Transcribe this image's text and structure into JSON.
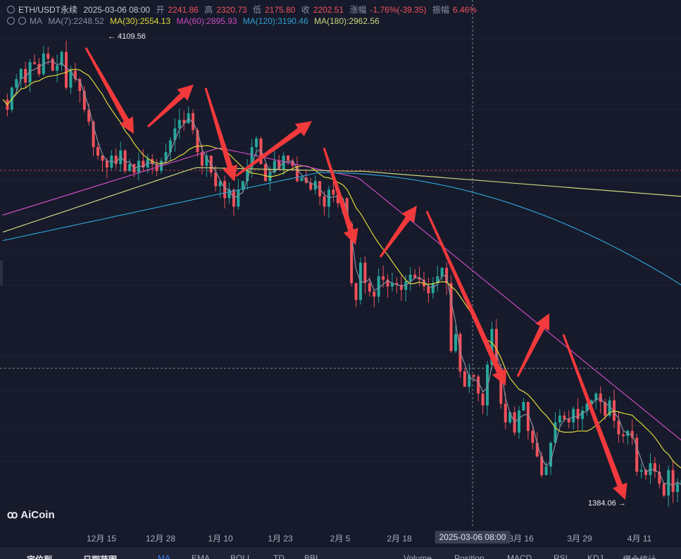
{
  "header": {
    "symbol": "ETH/USDT永续",
    "datetime": "2025-03-06 08:00",
    "open_label": "开",
    "open": "2241.86",
    "high_label": "高",
    "high": "2320.73",
    "low_label": "低",
    "low": "2175.80",
    "close_label": "收",
    "close": "2202.51",
    "change_label": "涨幅",
    "change": "-1.76%(-39.35)",
    "amp_label": "振幅",
    "amp": "6.46%"
  },
  "indicators": {
    "name": "MA",
    "ma7": "MA(7):2248.52",
    "ma30": "MA(30):2554.13",
    "ma60": "MA(60):2895.93",
    "ma120": "MA(120):3190.46",
    "ma180": "MA(180):2962.56"
  },
  "colors": {
    "up": "#f0515a",
    "down": "#26a69a",
    "ma7": "#8a8fa0",
    "ma30": "#e0d93a",
    "ma60": "#c94bbf",
    "ma120": "#2f9fd0",
    "ma180": "#c9d67a",
    "arrow": "#f2393c"
  },
  "annotations": {
    "high_label": "← 4109.56",
    "low_label": "1384.06 →"
  },
  "crosshair_label": "2025-03-06 08:00",
  "logo": {
    "text": "AiCoin",
    "icon": "aicoin-logo-icon"
  },
  "x_axis_labels": [
    "12月 15",
    "12月 28",
    "1月 10",
    "1月 23",
    "2月 5",
    "2月 18",
    "3月 16",
    "3月 29",
    "4月 11"
  ],
  "bottom_bar": [
    "定位到",
    "日期范围",
    "MA",
    "EMA",
    "BOLL",
    "TD",
    "BBI",
    "Volume",
    "Position",
    "MACD",
    "RSI",
    "KDJ",
    "爆仓统计"
  ],
  "chart_data": {
    "type": "candlestick",
    "interval": "12h",
    "x_range": [
      "2024-12-06",
      "2025-04-21"
    ],
    "annotated_high": 4109.56,
    "annotated_low": 1384.06,
    "last_close": 2202.51,
    "series": [
      {
        "name": "MA(7)",
        "last": 2248.52
      },
      {
        "name": "MA(30)",
        "last": 2554.13
      },
      {
        "name": "MA(60)",
        "last": 2895.93
      },
      {
        "name": "MA(120)",
        "last": 3190.46
      },
      {
        "name": "MA(180)",
        "last": 2962.56
      }
    ],
    "closes": [
      3780,
      3720,
      3850,
      3900,
      3960,
      3880,
      4000,
      3990,
      3930,
      4050,
      4020,
      3950,
      3980,
      4060,
      3850,
      3950,
      3900,
      3830,
      3720,
      3650,
      3500,
      3450,
      3420,
      3380,
      3450,
      3400,
      3480,
      3360,
      3400,
      3350,
      3420,
      3380,
      3430,
      3400,
      3360,
      3420,
      3470,
      3540,
      3610,
      3660,
      3640,
      3700,
      3600,
      3470,
      3390,
      3450,
      3350,
      3270,
      3300,
      3200,
      3250,
      3150,
      3250,
      3300,
      3380,
      3500,
      3550,
      3400,
      3300,
      3350,
      3420,
      3370,
      3450,
      3420,
      3390,
      3300,
      3320,
      3290,
      3250,
      3300,
      3210,
      3150,
      3250,
      3220,
      3170,
      3200,
      3050,
      2700,
      2600,
      2820,
      2700,
      2650,
      2620,
      2740,
      2720,
      2680,
      2700,
      2690,
      2660,
      2710,
      2750,
      2730,
      2720,
      2680,
      2640,
      2700,
      2740,
      2790,
      2700,
      2300,
      2400,
      2180,
      2090,
      2160,
      2150,
      2050,
      1980,
      2220,
      2430,
      2200,
      1990,
      1880,
      1940,
      1820,
      1950,
      2000,
      1830,
      1760,
      1680,
      1570,
      1620,
      1760,
      1880,
      1920,
      1900,
      1880,
      1960,
      1900,
      1950,
      1990,
      2010,
      2050,
      2000,
      1920,
      2010,
      1890,
      1810,
      1800,
      1830,
      1790,
      1590,
      1600,
      1570,
      1640,
      1590,
      1520,
      1450,
      1600,
      1470,
      1520,
      1540,
      1560,
      1580,
      1570,
      1600,
      1540,
      1570,
      1580
    ]
  }
}
